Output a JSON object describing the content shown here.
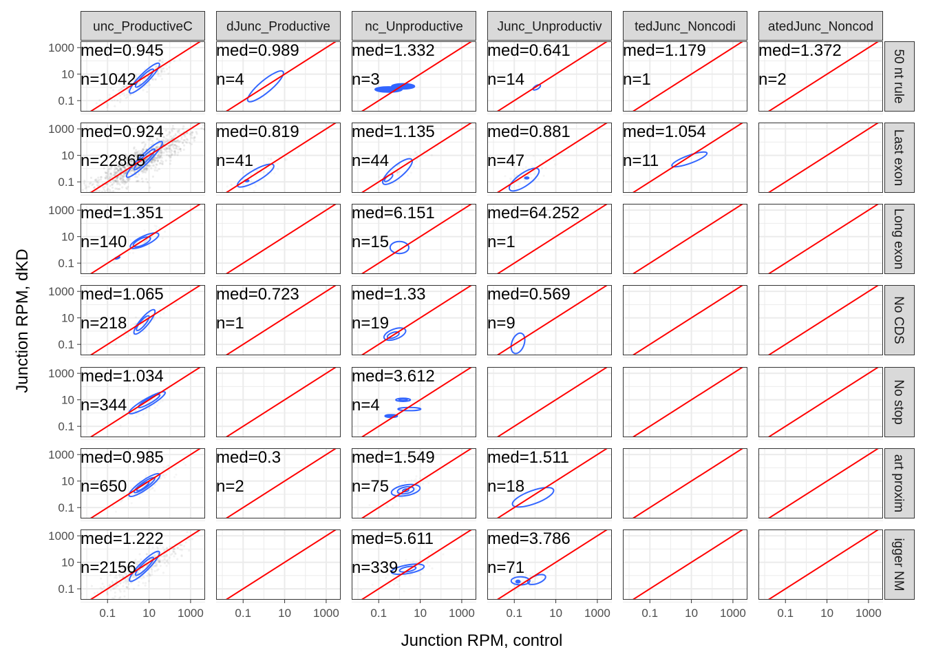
{
  "chart_data": {
    "type": "scatter",
    "xlabel": "Junction RPM, control",
    "ylabel": "Junction RPM, dKD",
    "xscale": "log10",
    "yscale": "log10",
    "xlim": [
      0.005,
      5000
    ],
    "ylim": [
      0.015,
      3000
    ],
    "xticks": [
      {
        "value": 0.1,
        "label": "0.1"
      },
      {
        "value": 10,
        "label": "10"
      },
      {
        "value": 1000,
        "label": "1000"
      }
    ],
    "yticks": [
      {
        "value": 0.1,
        "label": "0.1"
      },
      {
        "value": 10,
        "label": "10"
      },
      {
        "value": 1000,
        "label": "1000"
      }
    ],
    "grid": true,
    "reference_line": "y = x",
    "colors": {
      "reference_line": "#ff0000",
      "density_contour": "#3366ff",
      "points": "#000000",
      "strip_fill": "#d9d9d9",
      "panel_border": "#333333",
      "grid": "#ebebeb"
    },
    "columns": [
      "unc_ProductiveC",
      "dJunc_Productive",
      "nc_Unproductive",
      "Junc_Unproductiv",
      "tedJunc_Noncodi",
      "atedJunc_Noncod"
    ],
    "rows": [
      "50 nt rule",
      "Last exon",
      "Long exon",
      "No CDS",
      "No stop",
      "art proxim",
      "igger NM"
    ],
    "panels": [
      {
        "row": 0,
        "col": 0,
        "med": "med=0.945",
        "n": "n=1042",
        "points": 1042,
        "center": [
          4,
          3
        ],
        "spread": [
          0.9,
          0.55
        ],
        "contours": [
          [
            6,
            5,
            1.0,
            0.35,
            45
          ],
          [
            6,
            5,
            0.6,
            0.22,
            45
          ]
        ]
      },
      {
        "row": 0,
        "col": 1,
        "med": "med=0.989",
        "n": "n=4",
        "points": 4,
        "center": [
          1,
          1
        ],
        "spread": [
          0.8,
          0.6
        ],
        "contours": [
          [
            1.2,
            1.2,
            1.1,
            0.45,
            40
          ]
        ]
      },
      {
        "row": 0,
        "col": 2,
        "med": "med=1.332",
        "n": "n=3",
        "points": 3,
        "center": [
          0.5,
          0.7
        ],
        "spread": [
          0.5,
          0.2
        ],
        "contours": [
          [
            0.3,
            0.7,
            0.65,
            0.2,
            0,
            1
          ],
          [
            1.5,
            1.2,
            0.55,
            0.2,
            0,
            1
          ]
        ]
      },
      {
        "row": 0,
        "col": 3,
        "med": "med=0.641",
        "n": "n=14",
        "points": 14,
        "center": [
          1.2,
          1
        ],
        "spread": [
          0.3,
          0.2
        ],
        "contours": [
          [
            1.2,
            1.0,
            0.2,
            0.14,
            30
          ]
        ]
      },
      {
        "row": 0,
        "col": 4,
        "med": "med=1.179",
        "n": "n=1",
        "points": 1,
        "center": [
          1,
          1
        ],
        "spread": [
          0,
          0
        ],
        "contours": []
      },
      {
        "row": 0,
        "col": 5,
        "med": "med=1.372",
        "n": "n=2",
        "points": 2,
        "center": [
          1,
          1
        ],
        "spread": [
          0,
          0
        ],
        "contours": []
      },
      {
        "row": 1,
        "col": 0,
        "med": "med=0.924",
        "n": "n=22865",
        "points": 22865,
        "center": [
          4,
          3
        ],
        "spread": [
          1.4,
          0.75
        ],
        "contours": [
          [
            6,
            5,
            1.2,
            0.35,
            45
          ],
          [
            6,
            5,
            0.7,
            0.2,
            45
          ]
        ]
      },
      {
        "row": 1,
        "col": 1,
        "med": "med=0.819",
        "n": "n=41",
        "points": 41,
        "center": [
          0.6,
          0.5
        ],
        "spread": [
          0.7,
          0.5
        ],
        "contours": [
          [
            0.4,
            0.3,
            1.0,
            0.42,
            30
          ],
          [
            0.15,
            0.12,
            0.1,
            0.07,
            0,
            1
          ]
        ]
      },
      {
        "row": 1,
        "col": 2,
        "med": "med=1.135",
        "n": "n=44",
        "points": 44,
        "center": [
          1,
          1
        ],
        "spread": [
          0.7,
          0.5
        ],
        "contours": [
          [
            0.8,
            0.6,
            0.9,
            0.45,
            40
          ],
          [
            0.3,
            0.2,
            0.25,
            0.15,
            40
          ]
        ]
      },
      {
        "row": 1,
        "col": 3,
        "med": "med=0.881",
        "n": "n=47",
        "points": 47,
        "center": [
          0.5,
          0.5
        ],
        "spread": [
          0.7,
          0.5
        ],
        "contours": [
          [
            0.3,
            0.15,
            0.85,
            0.48,
            35
          ],
          [
            0.4,
            0.2,
            0.1,
            0.07,
            0,
            1
          ]
        ]
      },
      {
        "row": 1,
        "col": 4,
        "med": "med=1.054",
        "n": "n=11",
        "points": 11,
        "center": [
          10,
          5
        ],
        "spread": [
          0.6,
          0.3
        ],
        "contours": [
          [
            8,
            5,
            0.9,
            0.3,
            20
          ]
        ]
      },
      {
        "row": 2,
        "col": 0,
        "med": "med=1.351",
        "n": "n=140",
        "points": 140,
        "center": [
          5,
          4
        ],
        "spread": [
          0.6,
          0.35
        ],
        "contours": [
          [
            6,
            5,
            0.75,
            0.35,
            25
          ],
          [
            4.5,
            4,
            0.45,
            0.25,
            25
          ],
          [
            0.3,
            0.25,
            0.12,
            0.06,
            20,
            1
          ]
        ]
      },
      {
        "row": 2,
        "col": 3,
        "med": "med=64.252",
        "n": "n=1",
        "points": 1,
        "center": [
          1,
          1
        ],
        "spread": [
          0,
          0
        ],
        "contours": []
      },
      {
        "row": 2,
        "col": 2,
        "med": "med=6.151",
        "n": "n=15",
        "points": 15,
        "center": [
          0.8,
          1.2
        ],
        "spread": [
          0.4,
          0.4
        ],
        "contours": [
          [
            1,
            1.5,
            0.45,
            0.45,
            0
          ]
        ]
      },
      {
        "row": 3,
        "col": 0,
        "med": "med=1.065",
        "n": "n=218",
        "points": 218,
        "center": [
          4,
          3
        ],
        "spread": [
          0.6,
          0.4
        ],
        "contours": [
          [
            6,
            5,
            0.75,
            0.32,
            50
          ],
          [
            5,
            4,
            0.45,
            0.2,
            50
          ]
        ]
      },
      {
        "row": 3,
        "col": 1,
        "med": "med=0.723",
        "n": "n=1",
        "points": 1,
        "center": [
          1,
          1
        ],
        "spread": [
          0,
          0
        ],
        "contours": []
      },
      {
        "row": 3,
        "col": 2,
        "med": "med=1.33",
        "n": "n=19",
        "points": 19,
        "center": [
          0.6,
          0.5
        ],
        "spread": [
          0.4,
          0.4
        ],
        "contours": [
          [
            0.6,
            0.6,
            0.55,
            0.38,
            20
          ],
          [
            0.5,
            0.5,
            0.3,
            0.2,
            20
          ]
        ]
      },
      {
        "row": 3,
        "col": 3,
        "med": "med=0.569",
        "n": "n=9",
        "points": 9,
        "center": [
          0.2,
          0.1
        ],
        "spread": [
          0.2,
          0.4
        ],
        "contours": [
          [
            0.15,
            0.12,
            0.3,
            0.8,
            -20
          ]
        ]
      },
      {
        "row": 4,
        "col": 0,
        "med": "med=1.034",
        "n": "n=344",
        "points": 344,
        "center": [
          8,
          5
        ],
        "spread": [
          0.6,
          0.4
        ],
        "contours": [
          [
            8,
            6,
            1.0,
            0.3,
            30
          ],
          [
            10,
            8,
            0.6,
            0.18,
            30
          ]
        ]
      },
      {
        "row": 4,
        "col": 2,
        "med": "med=3.612",
        "n": "n=4",
        "points": 4,
        "center": [
          1,
          3
        ],
        "spread": [
          0.5,
          0.5
        ],
        "contours": [
          [
            1.5,
            10,
            0.35,
            0.12,
            0
          ],
          [
            1.5,
            10,
            0.2,
            0.06,
            0
          ],
          [
            3,
            2,
            0.55,
            0.12,
            0
          ],
          [
            0.4,
            0.6,
            0.3,
            0.1,
            0,
            1
          ]
        ]
      },
      {
        "row": 5,
        "col": 0,
        "med": "med=0.985",
        "n": "n=650",
        "points": 650,
        "center": [
          6,
          4
        ],
        "spread": [
          0.7,
          0.45
        ],
        "contours": [
          [
            6,
            5,
            0.9,
            0.35,
            35
          ],
          [
            6,
            5,
            0.6,
            0.22,
            35
          ],
          [
            5,
            4,
            0.35,
            0.14,
            35
          ]
        ]
      },
      {
        "row": 5,
        "col": 1,
        "med": "med=0.3",
        "n": "n=2",
        "points": 2,
        "center": [
          1,
          1
        ],
        "spread": [
          0,
          0
        ],
        "contours": []
      },
      {
        "row": 5,
        "col": 2,
        "med": "med=1.549",
        "n": "n=75",
        "points": 75,
        "center": [
          2,
          2
        ],
        "spread": [
          0.6,
          0.5
        ],
        "contours": [
          [
            2,
            2,
            0.7,
            0.4,
            10
          ],
          [
            2,
            2,
            0.4,
            0.25,
            10
          ],
          [
            2,
            2,
            0.15,
            0.1,
            10
          ]
        ]
      },
      {
        "row": 5,
        "col": 3,
        "med": "med=1.511",
        "n": "n=18",
        "points": 18,
        "center": [
          0.8,
          0.5
        ],
        "spread": [
          0.7,
          0.5
        ],
        "contours": [
          [
            0.8,
            0.6,
            1.05,
            0.5,
            20
          ]
        ]
      },
      {
        "row": 6,
        "col": 0,
        "med": "med=1.222",
        "n": "n=2156",
        "points": 2156,
        "center": [
          5,
          4
        ],
        "spread": [
          1.1,
          0.7
        ],
        "contours": [
          [
            6,
            5,
            1.0,
            0.35,
            45
          ],
          [
            6,
            5,
            0.6,
            0.22,
            45
          ]
        ]
      },
      {
        "row": 6,
        "col": 2,
        "med": "med=5.611",
        "n": "n=339",
        "points": 339,
        "center": [
          2,
          2
        ],
        "spread": [
          0.8,
          0.6
        ],
        "contours": [
          [
            2.5,
            3,
            0.8,
            0.32,
            10
          ],
          [
            2.5,
            3,
            0.4,
            0.18,
            10
          ]
        ]
      },
      {
        "row": 6,
        "col": 3,
        "med": "med=3.786",
        "n": "n=71",
        "points": 71,
        "center": [
          0.4,
          0.3
        ],
        "spread": [
          0.6,
          0.4
        ],
        "contours": [
          [
            0.2,
            0.4,
            0.45,
            0.3,
            0
          ],
          [
            1.2,
            0.5,
            0.45,
            0.3,
            20
          ],
          [
            0.15,
            0.35,
            0.1,
            0.1,
            0,
            1
          ]
        ]
      }
    ]
  }
}
